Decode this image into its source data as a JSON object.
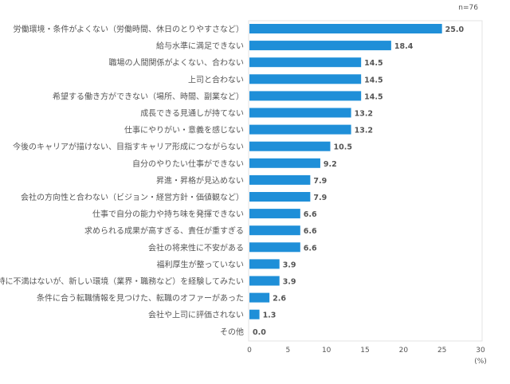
{
  "chart_data": {
    "type": "bar",
    "orientation": "horizontal",
    "note": "n=76",
    "xlabel": "(%)",
    "xlim": [
      0,
      30
    ],
    "xticks": [
      0,
      5,
      10,
      15,
      20,
      25,
      30
    ],
    "grid": false,
    "bar_color": "#1f8fd8",
    "categories": [
      "労働環境・条件がよくない（労働時間、休日のとりやすさなど）",
      "給与水準に満足できない",
      "職場の人間関係がよくない、合わない",
      "上司と合わない",
      "希望する働き方ができない（場所、時間、副業など）",
      "成長できる見通しが持てない",
      "仕事にやりがい・意義を感じない",
      "今後のキャリアが描けない、目指すキャリア形成につながらない",
      "自分のやりたい仕事ができない",
      "昇進・昇格が見込めない",
      "会社の方向性と合わない（ビジョン・経営方針・価値観など）",
      "仕事で自分の能力や持ち味を発揮できない",
      "求められる成果が高すぎる、責任が重すぎる",
      "会社の将来性に不安がある",
      "福利厚生が整っていない",
      "特に不満はないが、新しい環境（業界・職務など）を経験してみたい",
      "条件に合う転職情報を見つけた、転職のオファーがあった",
      "会社や上司に評価されない",
      "その他"
    ],
    "values": [
      25.0,
      18.4,
      14.5,
      14.5,
      14.5,
      13.2,
      13.2,
      10.5,
      9.2,
      7.9,
      7.9,
      6.6,
      6.6,
      6.6,
      3.9,
      3.9,
      2.6,
      1.3,
      0.0
    ]
  }
}
